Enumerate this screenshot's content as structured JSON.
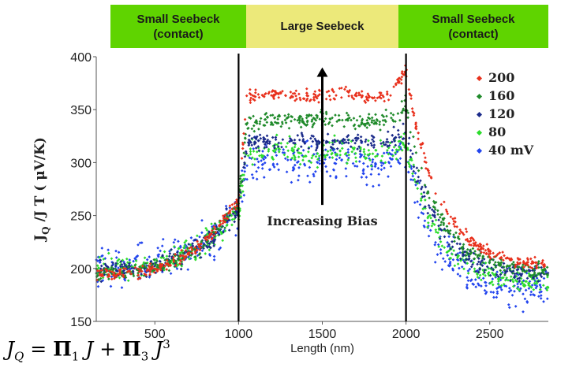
{
  "bands": [
    {
      "line1": "Small Seebeck",
      "line2": "(contact)",
      "color": "#5fd400"
    },
    {
      "line1": "Large Seebeck",
      "line2": "",
      "color": "#ece97a"
    },
    {
      "line1": "Small Seebeck",
      "line2": "(contact)",
      "color": "#5fd400"
    }
  ],
  "formula": {
    "lhs": "J",
    "lhs_sub": "Q",
    "eq": " = ",
    "term1_sym": "Π",
    "term1_sub": "1",
    "term1_var": " J",
    "plus": " + ",
    "term2_sym": "Π",
    "term2_sub": "3",
    "term2_var": " J",
    "term2_sup": "3"
  },
  "chart_data": {
    "type": "scatter",
    "xlabel": "Length (nm)",
    "ylabel": "J_Q / J T ( μV/K)",
    "ylabel_parts": {
      "j": "J",
      "sub": "Q",
      "rest": "/J T ( μV/K)"
    },
    "xlim": [
      150,
      2850
    ],
    "ylim": [
      150,
      400
    ],
    "x_ticks": [
      500,
      1000,
      1500,
      2000,
      2500
    ],
    "y_ticks": [
      150,
      200,
      250,
      300,
      350,
      400
    ],
    "grid": false,
    "legend_position": "top-right",
    "vertical_lines": [
      1000,
      2000
    ],
    "annotation": {
      "text": "Increasing Bias",
      "arrow_x": 1500,
      "arrow_from_y": 260,
      "arrow_to_y": 390
    },
    "series": [
      {
        "name": "200",
        "color": "#e8301c",
        "contact_start": 195,
        "contact_end_1000": 265,
        "plateau": 364,
        "peak": 385,
        "right_end": 202,
        "noise": 4
      },
      {
        "name": "160",
        "color": "#1f8a2a",
        "contact_start": 196,
        "contact_end_1000": 262,
        "plateau": 340,
        "peak": 352,
        "right_end": 196,
        "noise": 5
      },
      {
        "name": "120",
        "color": "#1a2a8a",
        "contact_start": 198,
        "contact_end_1000": 258,
        "plateau": 320,
        "peak": 328,
        "right_end": 192,
        "noise": 6
      },
      {
        "name": "80",
        "color": "#2cdc2c",
        "contact_start": 200,
        "contact_end_1000": 255,
        "plateau": 310,
        "peak": 318,
        "right_end": 186,
        "noise": 8
      },
      {
        "name": "40 mV",
        "color": "#2244ee",
        "contact_start": 203,
        "contact_end_1000": 250,
        "plateau": 300,
        "peak": 305,
        "right_end": 180,
        "noise": 13
      }
    ]
  }
}
